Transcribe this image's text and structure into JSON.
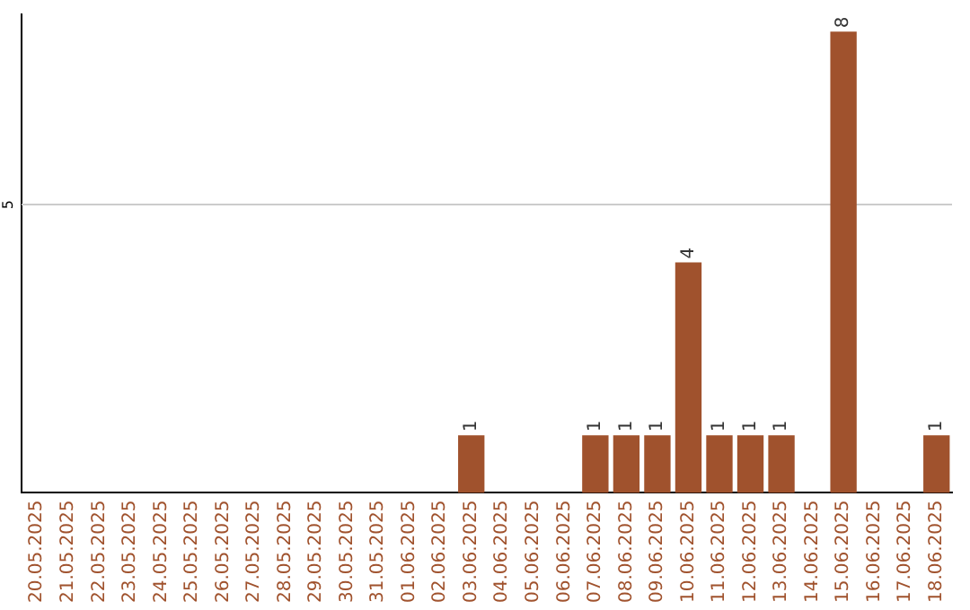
{
  "chart_data": {
    "type": "bar",
    "categories": [
      "20.05.2025",
      "21.05.2025",
      "22.05.2025",
      "23.05.2025",
      "24.05.2025",
      "25.05.2025",
      "26.05.2025",
      "27.05.2025",
      "28.05.2025",
      "29.05.2025",
      "30.05.2025",
      "31.05.2025",
      "01.06.2025",
      "02.06.2025",
      "03.06.2025",
      "04.06.2025",
      "05.06.2025",
      "06.06.2025",
      "07.06.2025",
      "08.06.2025",
      "09.06.2025",
      "10.06.2025",
      "11.06.2025",
      "12.06.2025",
      "13.06.2025",
      "14.06.2025",
      "15.06.2025",
      "16.06.2025",
      "17.06.2025",
      "18.06.2025"
    ],
    "values": [
      null,
      null,
      null,
      null,
      null,
      null,
      null,
      null,
      null,
      null,
      null,
      null,
      null,
      null,
      1,
      null,
      null,
      null,
      1,
      1,
      1,
      4,
      1,
      1,
      1,
      null,
      8,
      null,
      null,
      1
    ],
    "data_labels": true,
    "color": "#a0522d",
    "ylim": [
      0,
      8.3
    ],
    "ref_lines": [
      {
        "axis": "y",
        "value": 5,
        "label": "5",
        "color": "#cccccc"
      }
    ],
    "legend": false
  }
}
